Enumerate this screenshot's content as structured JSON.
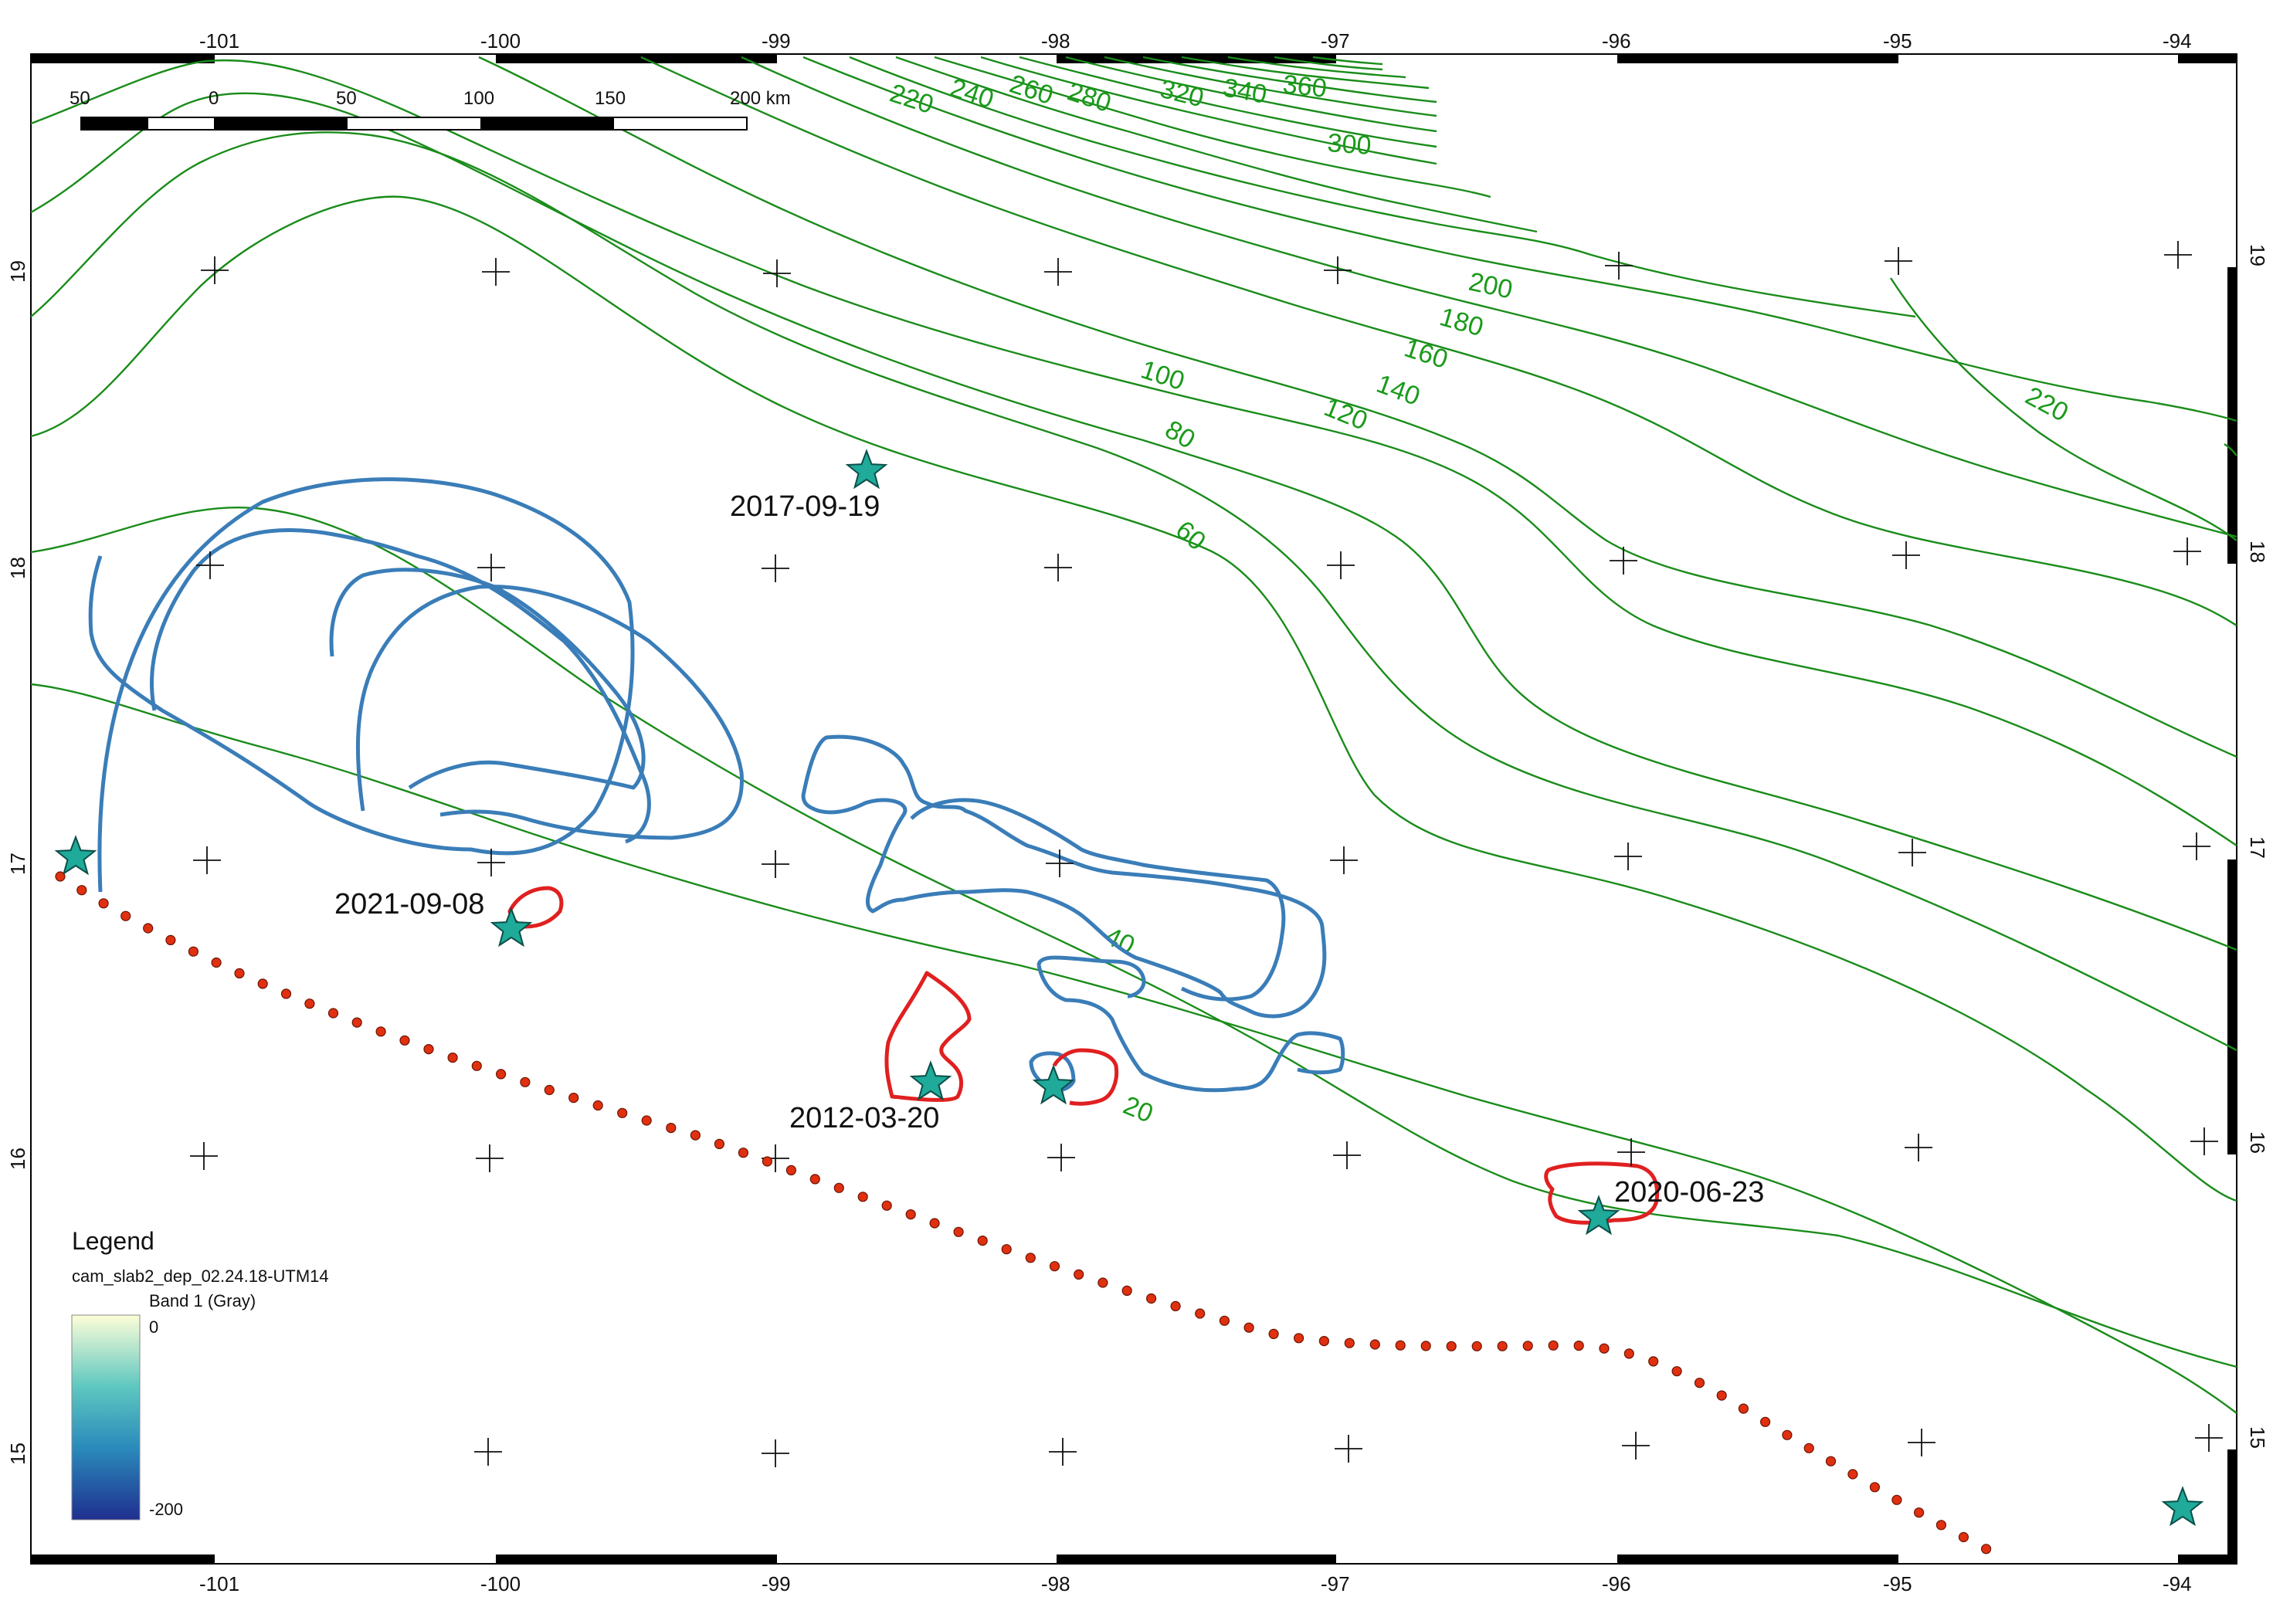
{
  "map": {
    "lon_ticks_top": [
      "-101",
      "-100",
      "-99",
      "-98",
      "-97",
      "-96",
      "-95",
      "-94"
    ],
    "lon_ticks_bottom": [
      "-101",
      "-100",
      "-99",
      "-98",
      "-97",
      "-96",
      "-95",
      "-94"
    ],
    "lat_ticks_left": [
      "19",
      "18",
      "17",
      "16",
      "15"
    ],
    "lat_ticks_right": [
      "19",
      "18",
      "17",
      "16",
      "15"
    ],
    "scalebar": {
      "labels": [
        "50",
        "0",
        "50",
        "100",
        "150",
        "200 km"
      ]
    },
    "contour_labels": [
      "220",
      "240",
      "260",
      "280",
      "320",
      "340",
      "360",
      "300",
      "200",
      "180",
      "160",
      "140",
      "120",
      "100",
      "80",
      "60",
      "40",
      "20",
      "220"
    ],
    "events": [
      {
        "date": "2017-09-19"
      },
      {
        "date": "2021-09-08"
      },
      {
        "date": "2012-03-20"
      },
      {
        "date": "2020-06-23"
      }
    ],
    "legend": {
      "title": "Legend",
      "layer": "cam_slab2_dep_02.24.18-UTM14",
      "band": "Band 1 (Gray)",
      "max": "0",
      "min": "-200"
    },
    "colors": {
      "contour": "#1a8c1a",
      "contour_label": "#1a9a1a",
      "rupture_blue": "#3a7db8",
      "rupture_red": "#e02020",
      "star": "#1faa9a",
      "trench_dot": "#e03010"
    }
  }
}
